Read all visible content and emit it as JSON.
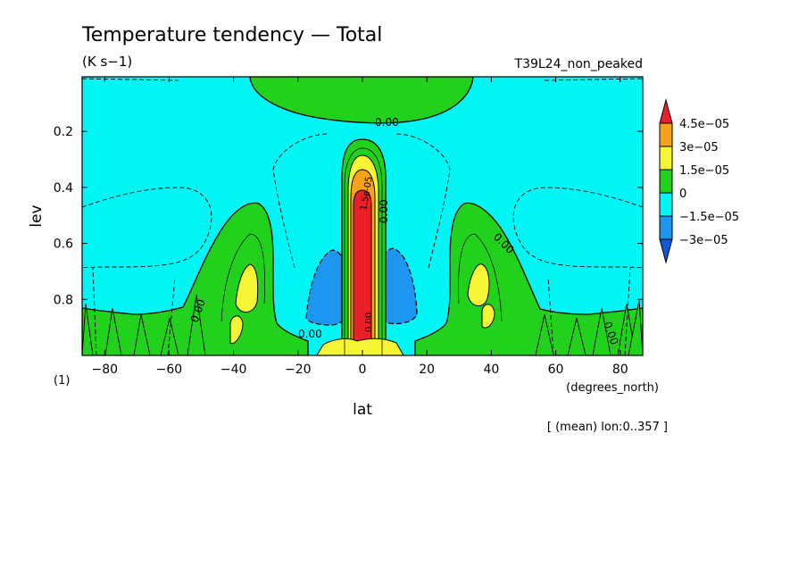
{
  "chart_data": {
    "type": "contour",
    "title": "Temperature tendency — Total",
    "units": "(K s−1)",
    "run_label": "T39L24_non_peaked",
    "xlabel": "lat",
    "xunits": "(degrees_north)",
    "ylabel": "lev",
    "yunits": "(1)",
    "mean_note": "[ (mean) lon:0..357 ]",
    "xlim": [
      -87,
      87
    ],
    "ylim": [
      1.0,
      0.005
    ],
    "x_ticks": [
      -80,
      -60,
      -40,
      -20,
      0,
      20,
      40,
      60,
      80
    ],
    "x_tick_labels": [
      "−80",
      "−60",
      "−40",
      "−20",
      "0",
      "20",
      "40",
      "60",
      "80"
    ],
    "y_ticks": [
      0.2,
      0.4,
      0.6,
      0.8
    ],
    "y_tick_labels": [
      "0.2",
      "0.4",
      "0.6",
      "0.8"
    ],
    "colorbar": {
      "levels": [
        "4.5e−05",
        "3e−05",
        "1.5e−05",
        "0",
        "−1.5e−05",
        "−3e−05"
      ],
      "colors": [
        "#e8202a",
        "#f7a21b",
        "#f5f536",
        "#22d11c",
        "#00f5f5",
        "#1e96f0",
        "#0a5cd6"
      ]
    },
    "contour_labels": [
      "0.00",
      "0.00",
      "0.00",
      "0.00",
      "0.00",
      "0.00",
      "1.5e-05",
      "0.00"
    ],
    "colors": {
      "background": "#00f5f5",
      "positive_low": "#22d11c",
      "positive_mid": "#f5f536",
      "positive_high": "#f7a21b",
      "positive_max": "#e8202a",
      "negative_mid": "#1e96f0"
    }
  }
}
